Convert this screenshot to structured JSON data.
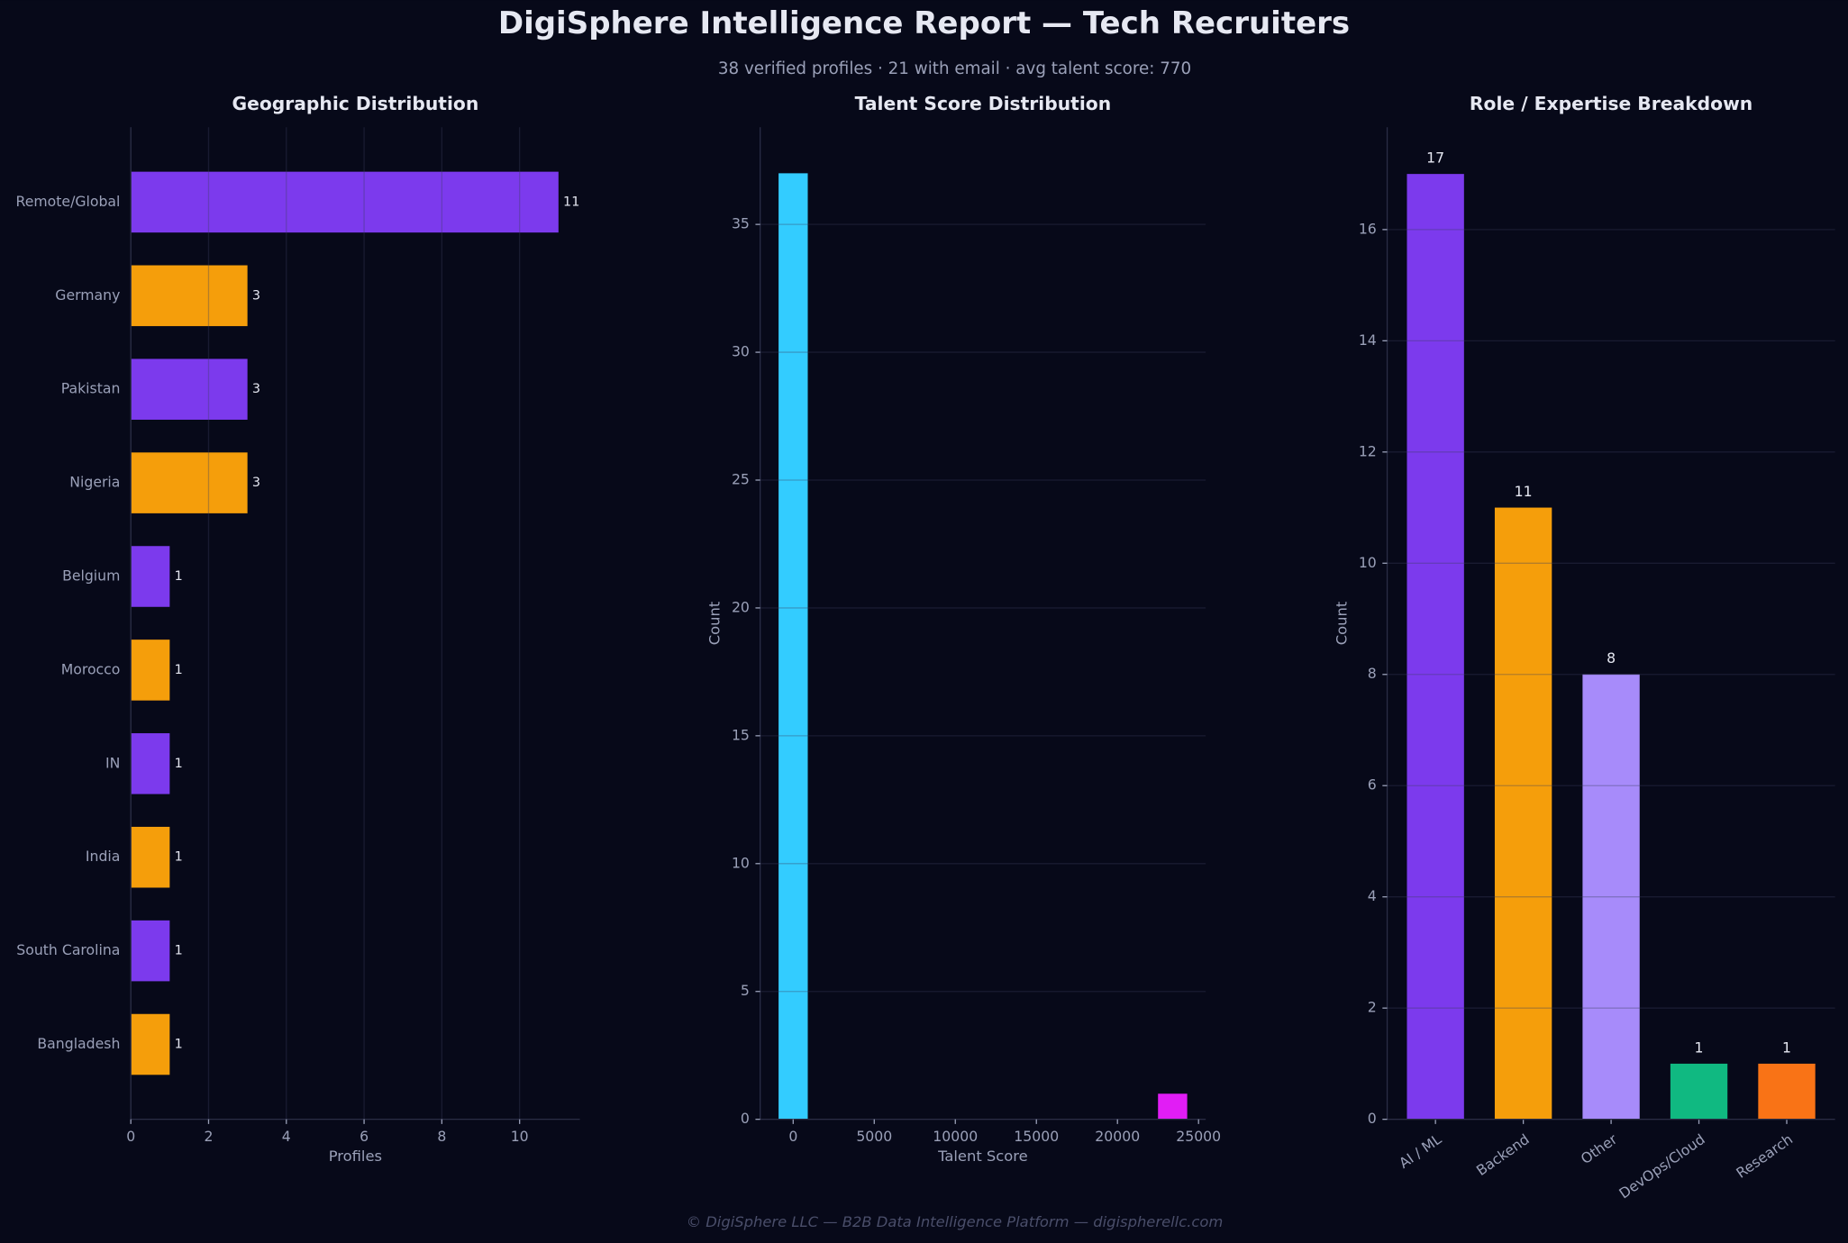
{
  "title": "DigiSphere Intelligence Report — Tech Recruiters",
  "subtitle": "38 verified profiles  ·  21 with email  ·  avg talent score: 770",
  "footer": "© DigiSphere LLC — B2B Data Intelligence Platform — digispherellc.com",
  "chart_data": [
    {
      "type": "barh",
      "title": "Geographic Distribution",
      "categories": [
        "Remote/Global",
        "Germany",
        "Pakistan",
        "Nigeria",
        "Belgium",
        "Morocco",
        "IN",
        "India",
        "South Carolina",
        "Bangladesh"
      ],
      "values": [
        11,
        3,
        3,
        3,
        1,
        1,
        1,
        1,
        1,
        1
      ],
      "colors": [
        "#7c3aed",
        "#f59e0b",
        "#7c3aed",
        "#f59e0b",
        "#7c3aed",
        "#f59e0b",
        "#7c3aed",
        "#f59e0b",
        "#7c3aed",
        "#f59e0b"
      ],
      "xlabel": "Profiles",
      "xlim": [
        0,
        11.55
      ],
      "xticks": [
        0,
        2,
        4,
        6,
        8,
        10
      ],
      "grid": true
    },
    {
      "type": "histogram",
      "title": "Talent Score Distribution",
      "bins": [
        -900,
        900,
        2700,
        4500,
        6300,
        8100,
        9900,
        11700,
        13500,
        15300,
        17100,
        18900,
        20700,
        22500,
        24300
      ],
      "values": [
        37,
        0,
        0,
        0,
        0,
        0,
        0,
        0,
        0,
        0,
        0,
        0,
        0,
        1
      ],
      "colors": [
        "#33ccff",
        "#33ccff",
        "#33ccff",
        "#33ccff",
        "#33ccff",
        "#33ccff",
        "#33ccff",
        "#33ccff",
        "#33ccff",
        "#33ccff",
        "#33ccff",
        "#33ccff",
        "#33ccff",
        "#e11df5"
      ],
      "xlabel": "Talent Score",
      "ylabel": "Count",
      "xlim": [
        -2035,
        25440
      ],
      "xticks": [
        0,
        5000,
        10000,
        15000,
        20000,
        25000
      ],
      "ylim": [
        0,
        38.8
      ],
      "yticks": [
        0,
        5,
        10,
        15,
        20,
        25,
        30,
        35
      ],
      "grid": true
    },
    {
      "type": "bar",
      "title": "Role / Expertise Breakdown",
      "categories": [
        "AI / ML",
        "Backend",
        "Other",
        "DevOps/Cloud",
        "Research"
      ],
      "values": [
        17,
        11,
        8,
        1,
        1
      ],
      "colors": [
        "#7c3aed",
        "#f59e0b",
        "#a78bfa",
        "#10b981",
        "#f97316"
      ],
      "ylabel": "Count",
      "ylim": [
        0,
        17.84
      ],
      "yticks": [
        0,
        2,
        4,
        6,
        8,
        10,
        12,
        14,
        16
      ],
      "grid": true
    }
  ]
}
